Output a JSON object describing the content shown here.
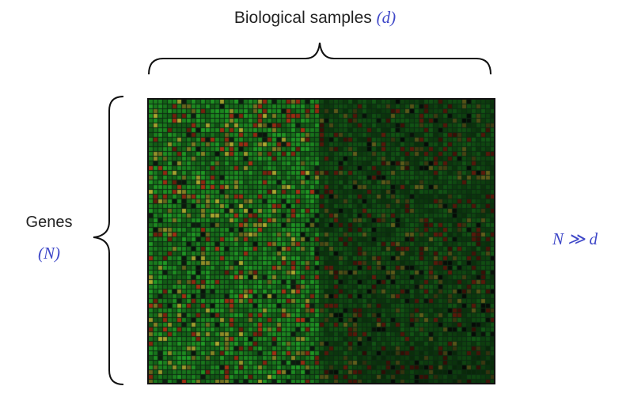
{
  "labels": {
    "columns_text": "Biological samples",
    "columns_var": "(d)",
    "rows_text": "Genes",
    "rows_var": "(N)",
    "relation": "N ≫ d"
  },
  "colors": {
    "math_text": "#3f48c8",
    "heat_green": "#2fbf2f",
    "heat_red": "#d43a1f",
    "heat_yellow": "#d8d83a",
    "background": "#0d2a12"
  },
  "heatmap": {
    "pattern": "microarray expression matrix (red/green/yellow spots)"
  }
}
